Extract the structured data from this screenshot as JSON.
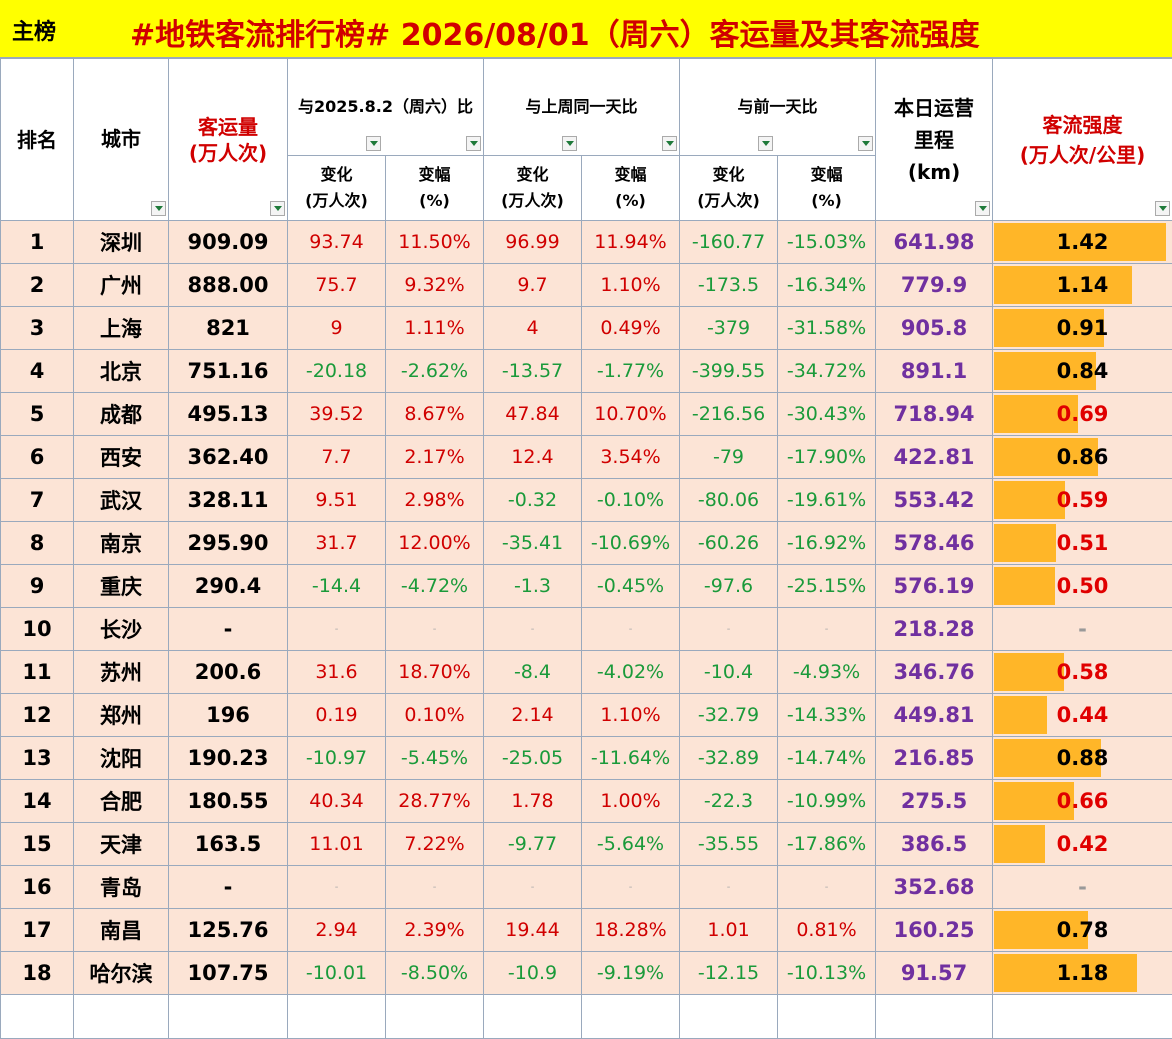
{
  "header": {
    "tag": "主榜",
    "title": "#地铁客流排行榜# 2026/08/01（周六）客运量及其客流强度"
  },
  "table": {
    "columns": {
      "rank": "排名",
      "city": "城市",
      "volume": [
        "客运量",
        "(万人次)"
      ],
      "groups": [
        "与2025.8.2（周六）比",
        "与上周同一天比",
        "与前一天比"
      ],
      "sub": [
        [
          "变化",
          "(万人次)"
        ],
        [
          "变幅",
          "(%)"
        ]
      ],
      "mileage": [
        "本日运营",
        "里程",
        "(km)"
      ],
      "intensity": [
        "客流强度",
        "(万人次/公里)"
      ]
    },
    "rows": [
      [
        "1",
        "深圳",
        "909.09",
        "93.74",
        "11.50%",
        "96.99",
        "11.94%",
        "-160.77",
        "-15.03%",
        "641.98",
        "1.42"
      ],
      [
        "2",
        "广州",
        "888.00",
        "75.7",
        "9.32%",
        "9.7",
        "1.10%",
        "-173.5",
        "-16.34%",
        "779.9",
        "1.14"
      ],
      [
        "3",
        "上海",
        "821",
        "9",
        "1.11%",
        "4",
        "0.49%",
        "-379",
        "-31.58%",
        "905.8",
        "0.91"
      ],
      [
        "4",
        "北京",
        "751.16",
        "-20.18",
        "-2.62%",
        "-13.57",
        "-1.77%",
        "-399.55",
        "-34.72%",
        "891.1",
        "0.84"
      ],
      [
        "5",
        "成都",
        "495.13",
        "39.52",
        "8.67%",
        "47.84",
        "10.70%",
        "-216.56",
        "-30.43%",
        "718.94",
        "0.69"
      ],
      [
        "6",
        "西安",
        "362.40",
        "7.7",
        "2.17%",
        "12.4",
        "3.54%",
        "-79",
        "-17.90%",
        "422.81",
        "0.86"
      ],
      [
        "7",
        "武汉",
        "328.11",
        "9.51",
        "2.98%",
        "-0.32",
        "-0.10%",
        "-80.06",
        "-19.61%",
        "553.42",
        "0.59"
      ],
      [
        "8",
        "南京",
        "295.90",
        "31.7",
        "12.00%",
        "-35.41",
        "-10.69%",
        "-60.26",
        "-16.92%",
        "578.46",
        "0.51"
      ],
      [
        "9",
        "重庆",
        "290.4",
        "-14.4",
        "-4.72%",
        "-1.3",
        "-0.45%",
        "-97.6",
        "-25.15%",
        "576.19",
        "0.50"
      ],
      [
        "10",
        "长沙",
        "-",
        "-",
        "-",
        "-",
        "-",
        "-",
        "-",
        "218.28",
        "-"
      ],
      [
        "11",
        "苏州",
        "200.6",
        "31.6",
        "18.70%",
        "-8.4",
        "-4.02%",
        "-10.4",
        "-4.93%",
        "346.76",
        "0.58"
      ],
      [
        "12",
        "郑州",
        "196",
        "0.19",
        "0.10%",
        "2.14",
        "1.10%",
        "-32.79",
        "-14.33%",
        "449.81",
        "0.44"
      ],
      [
        "13",
        "沈阳",
        "190.23",
        "-10.97",
        "-5.45%",
        "-25.05",
        "-11.64%",
        "-32.89",
        "-14.74%",
        "216.85",
        "0.88"
      ],
      [
        "14",
        "合肥",
        "180.55",
        "40.34",
        "28.77%",
        "1.78",
        "1.00%",
        "-22.3",
        "-10.99%",
        "275.5",
        "0.66"
      ],
      [
        "15",
        "天津",
        "163.5",
        "11.01",
        "7.22%",
        "-9.77",
        "-5.64%",
        "-35.55",
        "-17.86%",
        "386.5",
        "0.42"
      ],
      [
        "16",
        "青岛",
        "-",
        "-",
        "-",
        "-",
        "-",
        "-",
        "-",
        "352.68",
        "-"
      ],
      [
        "17",
        "南昌",
        "125.76",
        "2.94",
        "2.39%",
        "19.44",
        "18.28%",
        "1.01",
        "0.81%",
        "160.25",
        "0.78"
      ],
      [
        "18",
        "哈尔滨",
        "107.75",
        "-10.01",
        "-8.50%",
        "-10.9",
        "-9.19%",
        "-12.15",
        "-10.13%",
        "91.57",
        "1.18"
      ]
    ],
    "intensity_colors": [
      "#000",
      "#000",
      "#000",
      "#000",
      "#e00000",
      "#000",
      "#e00000",
      "#e00000",
      "#e00000",
      "#999",
      "#e00000",
      "#e00000",
      "#000",
      "#e00000",
      "#e00000",
      "#999",
      "#000",
      "#000"
    ]
  }
}
